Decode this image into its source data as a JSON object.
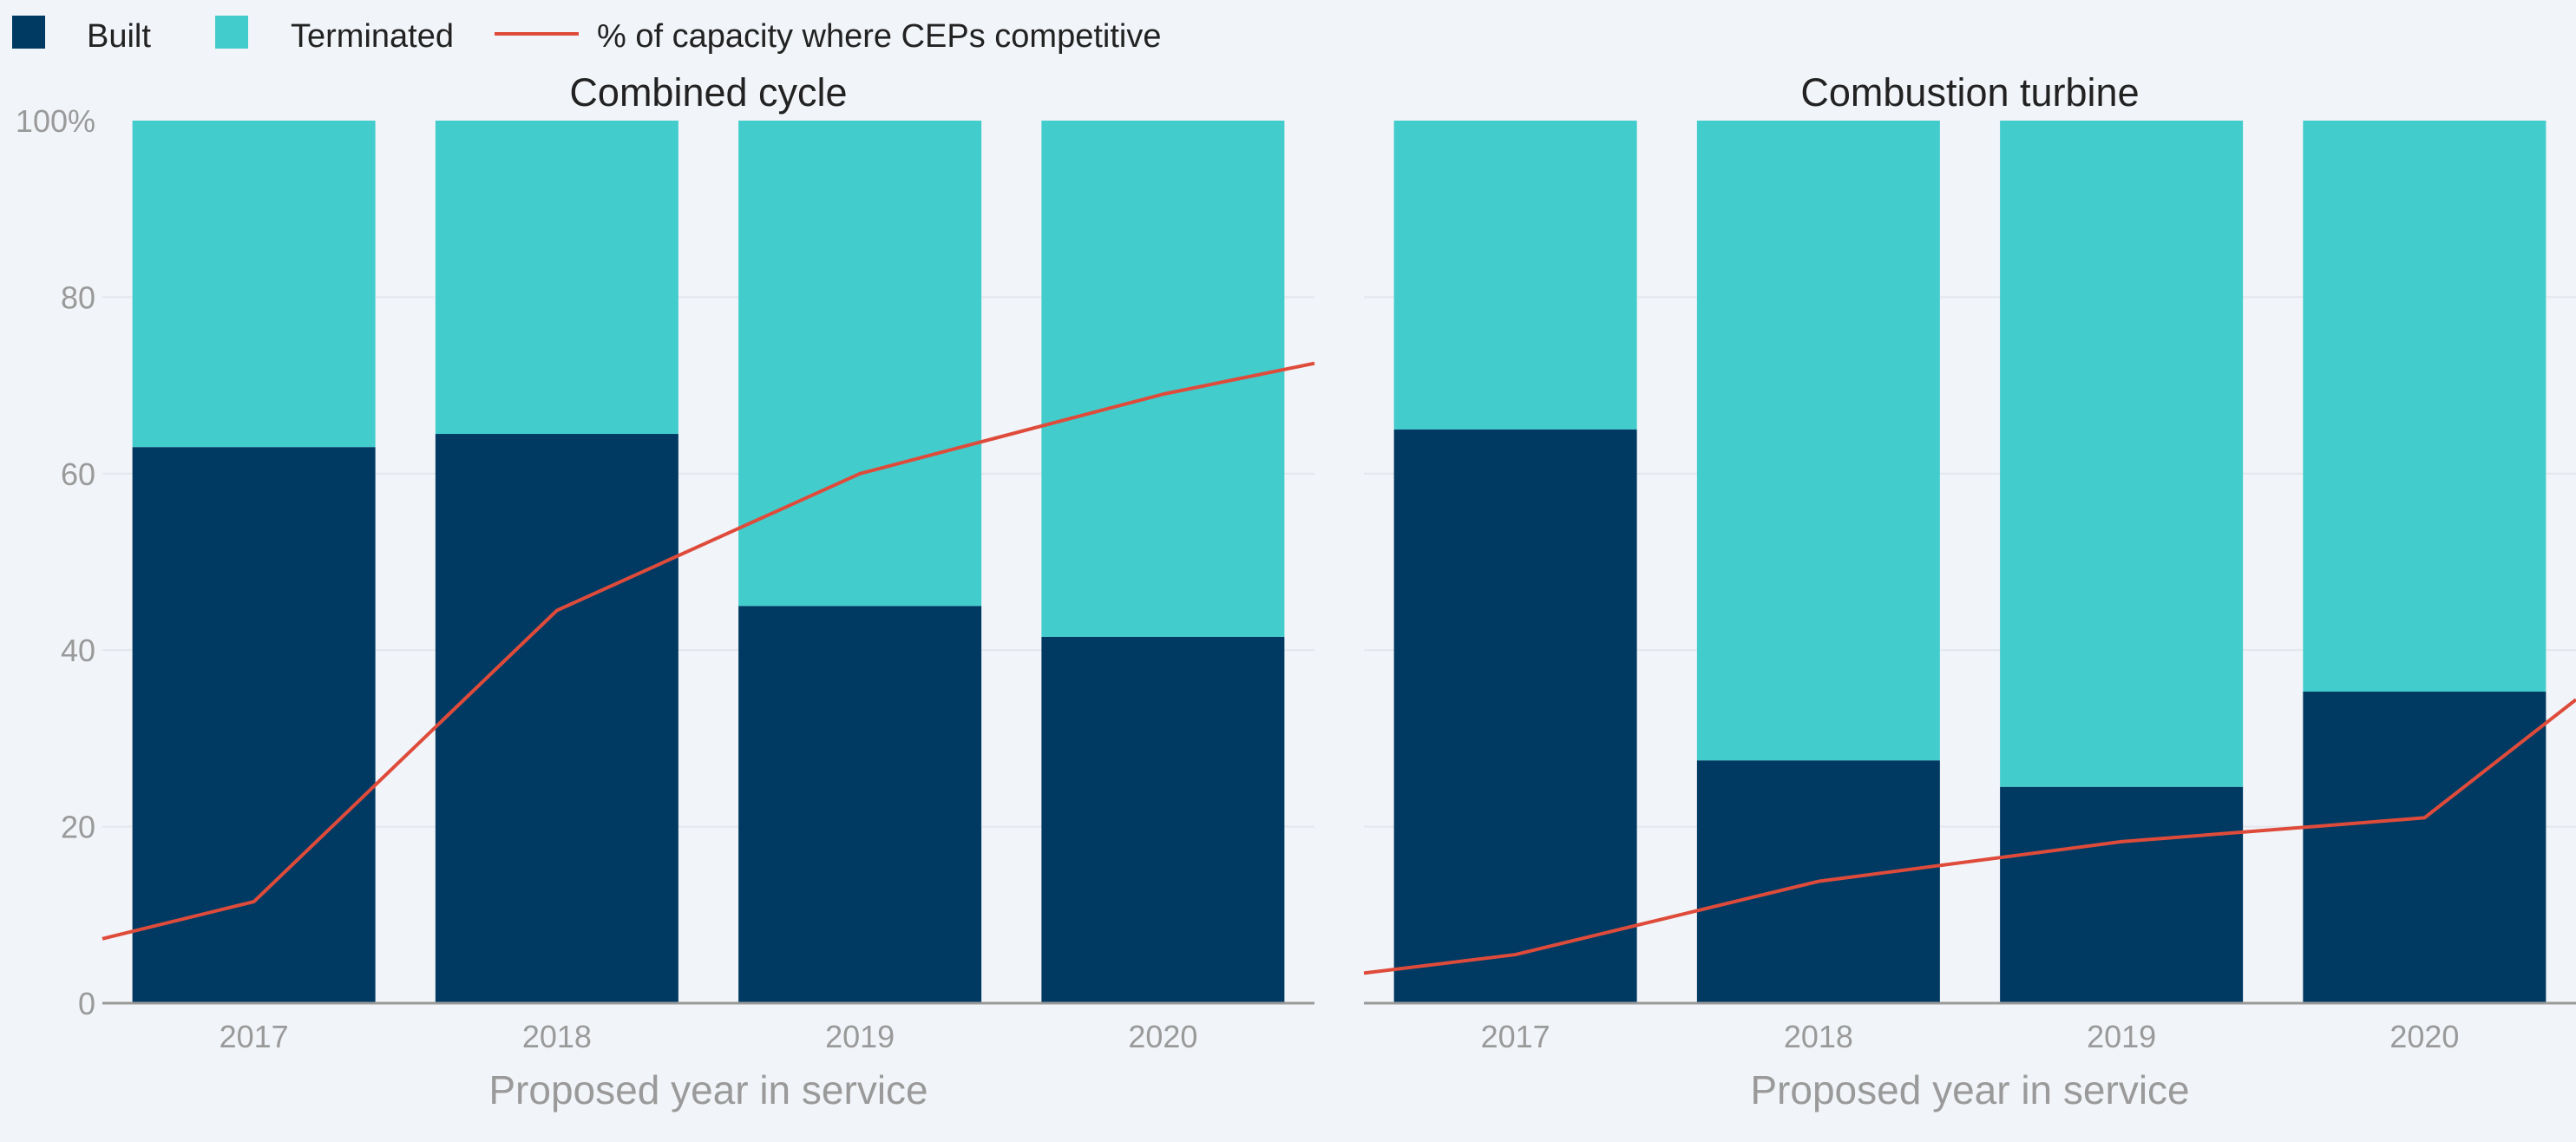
{
  "legend": {
    "built_label": "Built",
    "terminated_label": "Terminated",
    "line_label": "% of capacity where CEPs competitive"
  },
  "colors": {
    "built": "#003a63",
    "terminated": "#42cccc",
    "line": "#df4b3a",
    "background": "#f1f4f9"
  },
  "chart_data": [
    {
      "type": "bar",
      "stacked": true,
      "title": "Combined cycle",
      "xlabel": "Proposed year in service",
      "ylabel": "",
      "ylim": [
        0,
        100
      ],
      "y_ticks": [
        "0",
        "20",
        "40",
        "60",
        "80",
        "100%"
      ],
      "grid": true,
      "categories": [
        "2017",
        "2018",
        "2019",
        "2020"
      ],
      "series": [
        {
          "name": "Built",
          "values": [
            63,
            64.5,
            45,
            41.5
          ]
        },
        {
          "name": "Terminated",
          "values": [
            37,
            35.5,
            55,
            58.5
          ]
        }
      ],
      "line": {
        "name": "% of capacity where CEPs competitive",
        "values": [
          11.5,
          44.5,
          60,
          69
        ],
        "start_value": 7.3,
        "end_value": 72.5
      }
    },
    {
      "type": "bar",
      "stacked": true,
      "title": "Combustion turbine",
      "xlabel": "Proposed year in service",
      "ylabel": "",
      "ylim": [
        0,
        100
      ],
      "y_ticks": [],
      "grid": true,
      "categories": [
        "2017",
        "2018",
        "2019",
        "2020"
      ],
      "series": [
        {
          "name": "Built",
          "values": [
            65,
            27.5,
            24.5,
            35.3
          ]
        },
        {
          "name": "Terminated",
          "values": [
            35,
            72.5,
            75.5,
            64.7
          ]
        }
      ],
      "line": {
        "name": "% of capacity where CEPs competitive",
        "values": [
          5.5,
          13.8,
          18.3,
          21
        ],
        "start_value": 3.4,
        "end_value": 34.4
      }
    }
  ]
}
